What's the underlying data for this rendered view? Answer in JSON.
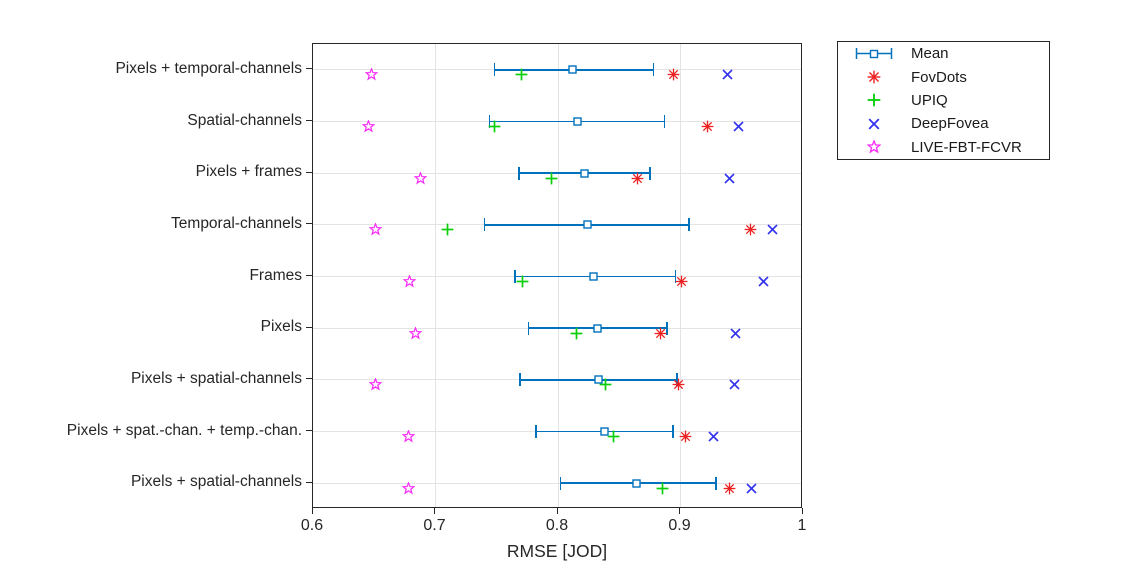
{
  "chart_data": {
    "type": "scatter",
    "title": "",
    "xlabel": "RMSE [JOD]",
    "ylabel": "",
    "xlim": [
      0.6,
      1.0
    ],
    "xticks": [
      0.6,
      0.7,
      0.8,
      0.9,
      1.0
    ],
    "xtick_labels": [
      "0.6",
      "0.7",
      "0.8",
      "0.9",
      "1"
    ],
    "grid": true,
    "legend_position": "outside top-right",
    "categories": [
      "Pixels + temporal-channels",
      "Spatial-channels",
      "Pixels + frames",
      "Temporal-channels",
      "Frames",
      "Pixels",
      "Pixels + spatial-channels",
      "Pixels + spat.-chan. + temp.-chan.",
      "Pixels + spatial-channels"
    ],
    "series": [
      {
        "name": "Mean",
        "marker": "errorbar-square",
        "color": "#0072BD",
        "values": [
          0.812,
          0.816,
          0.822,
          0.824,
          0.829,
          0.832,
          0.833,
          0.838,
          0.864
        ],
        "err_low": [
          0.748,
          0.744,
          0.768,
          0.74,
          0.765,
          0.776,
          0.769,
          0.782,
          0.802
        ],
        "err_high": [
          0.878,
          0.887,
          0.875,
          0.907,
          0.896,
          0.889,
          0.897,
          0.894,
          0.929
        ]
      },
      {
        "name": "FovDots",
        "marker": "asterisk",
        "color": "#EC2121",
        "values": [
          0.894,
          0.922,
          0.865,
          0.957,
          0.901,
          0.884,
          0.898,
          0.904,
          0.94
        ]
      },
      {
        "name": "UPIQ",
        "marker": "plus",
        "color": "#0ACF0A",
        "values": [
          0.77,
          0.748,
          0.795,
          0.71,
          0.771,
          0.815,
          0.839,
          0.845,
          0.885
        ]
      },
      {
        "name": "DeepFovea",
        "marker": "x",
        "color": "#3535F0",
        "values": [
          0.938,
          0.947,
          0.94,
          0.975,
          0.968,
          0.945,
          0.944,
          0.927,
          0.958
        ]
      },
      {
        "name": "LIVE-FBT-FCVR",
        "marker": "star",
        "color": "#F72BF7",
        "values": [
          0.648,
          0.645,
          0.688,
          0.651,
          0.679,
          0.684,
          0.651,
          0.678,
          0.678
        ]
      }
    ]
  }
}
